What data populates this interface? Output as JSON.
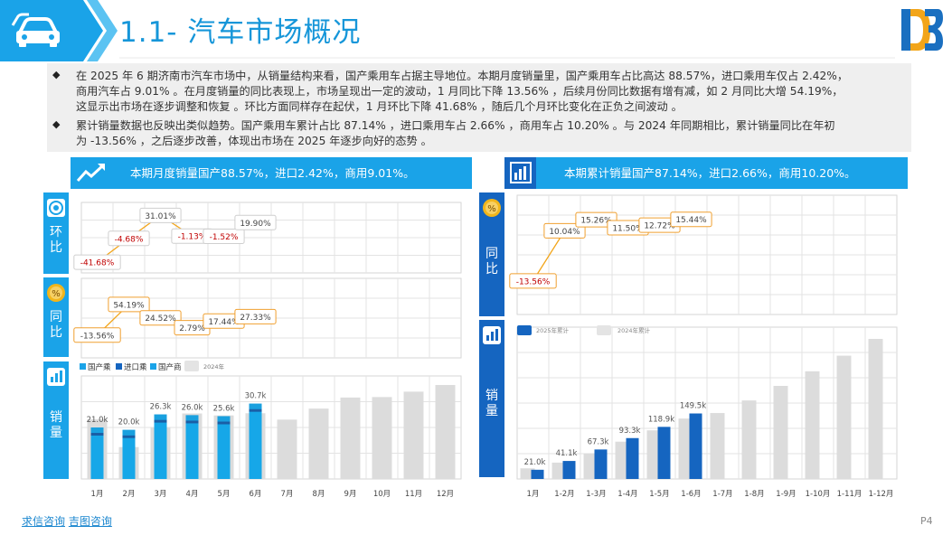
{
  "header": {
    "title": "1.1- 汽车市场概况",
    "car_icon": "car-icon",
    "logo_icon": "logo-icon"
  },
  "intro": {
    "p1_line1": "在 2025 年 6 期济南市汽车市场中，从销量结构来看，国产乘用车占据主导地位。本期月度销量里，国产乘用车占比高达 88.57%，进口乘用车仅占 2.42%，",
    "p1_line2": "商用汽车占 9.01% 。在月度销量的同比表现上，市场呈现出一定的波动，1 月同比下降 13.56% ，后续月份同比数据有增有减，如 2 月同比大增 54.19%，",
    "p1_line3": "这显示出市场在逐步调整和恢复 。环比方面同样存在起伏，1 月环比下降 41.68% ，随后几个月环比变化在正负之间波动 。",
    "p2_line1": "累计销量数据也反映出类似趋势。国产乘用车累计占比 87.14% ，进口乘用车占 2.66% ，商用车占 10.20% 。与 2024 年同期相比，累计销量同比在年初",
    "p2_line2": "为 -13.56% ，之后逐步改善，体现出市场在 2025 年逐步向好的态势 。",
    "bullet": "◆"
  },
  "left_panel": {
    "banner": "本期月度销量国产88.57%，进口2.42%，商用9.01%。",
    "side_mom": "环比",
    "side_yoy": "同比",
    "side_sales": "销量"
  },
  "right_panel": {
    "banner": "本期累计销量国产87.14%，进口2.66%，商用10.20%。",
    "side_yoy": "同比",
    "side_sales": "销量"
  },
  "footer": {
    "brand1": "求信咨询",
    "brand2": "吉图咨询",
    "page": "P4"
  },
  "colors": {
    "accent": "#1aa3e8",
    "dark_blue": "#1565c0",
    "bar_2025": "#16a7e8",
    "bar_2024": "#d9d9d9",
    "label_border": "#f0a030",
    "negative_text": "#c00000"
  },
  "chart_data": [
    {
      "id": "monthly_mom",
      "type": "line",
      "categories": [
        "1月",
        "2月",
        "3月",
        "4月",
        "5月",
        "6月"
      ],
      "values": [
        -41.68,
        -4.68,
        31.01,
        -1.13,
        -1.52,
        19.9
      ],
      "labels": [
        "-41.68%",
        "-4.68%",
        "31.01%",
        "-1.13%",
        "-1.52%",
        "19.90%"
      ],
      "ylim": [
        -50,
        40
      ]
    },
    {
      "id": "monthly_yoy",
      "type": "line",
      "categories": [
        "1月",
        "2月",
        "3月",
        "4月",
        "5月",
        "6月"
      ],
      "values": [
        -13.56,
        54.19,
        24.52,
        2.79,
        17.44,
        27.33
      ],
      "labels": [
        "-13.56%",
        "54.19%",
        "24.52%",
        "2.79%",
        "17.44%",
        "27.33%"
      ],
      "ylim": [
        -20,
        60
      ]
    },
    {
      "id": "monthly_sales",
      "type": "bar",
      "categories": [
        "1月",
        "2月",
        "3月",
        "4月",
        "5月",
        "6月",
        "7月",
        "8月",
        "9月",
        "10月",
        "11月",
        "12月"
      ],
      "legend": [
        "国产乘",
        "进口乘",
        "国产商",
        "2024年"
      ],
      "series": [
        {
          "name": "2025年",
          "values": [
            21.0,
            20.0,
            26.3,
            26.0,
            25.6,
            30.7,
            null,
            null,
            null,
            null,
            null,
            null
          ],
          "labels": [
            "21.0k",
            "20.0k",
            "26.3k",
            "26.0k",
            "25.6k",
            "30.7k",
            "",
            "",
            "",
            "",
            "",
            ""
          ]
        },
        {
          "name": "2024年",
          "values": [
            24.3,
            13.0,
            21.1,
            26.7,
            25.9,
            26.8,
            24.2,
            28.7,
            33.2,
            33.4,
            35.6,
            38.3
          ]
        }
      ],
      "ylim": [
        0,
        42
      ]
    },
    {
      "id": "cumulative_yoy",
      "type": "line",
      "categories": [
        "1月",
        "1-2月",
        "1-3月",
        "1-4月",
        "1-5月",
        "1-6月"
      ],
      "values": [
        -13.56,
        10.04,
        15.26,
        11.5,
        12.72,
        15.44
      ],
      "labels": [
        "-13.56%",
        "10.04%",
        "15.26%",
        "11.50%",
        "12.72%",
        "15.44%"
      ],
      "ylim": [
        -20,
        20
      ]
    },
    {
      "id": "cumulative_sales",
      "type": "bar",
      "categories": [
        "1月",
        "1-2月",
        "1-3月",
        "1-4月",
        "1-5月",
        "1-6月",
        "1-7月",
        "1-8月",
        "1-9月",
        "1-10月",
        "1-11月",
        "1-12月"
      ],
      "legend": [
        "2025年累计",
        "2024年累计"
      ],
      "series": [
        {
          "name": "2025年累计",
          "values": [
            21.0,
            41.1,
            67.3,
            93.3,
            118.9,
            149.5,
            null,
            null,
            null,
            null,
            null,
            null
          ],
          "labels": [
            "21.0k",
            "41.1k",
            "67.3k",
            "93.3k",
            "118.9k",
            "149.5k",
            "",
            "",
            "",
            "",
            "",
            ""
          ]
        },
        {
          "name": "2024年累计",
          "values": [
            24.3,
            37.3,
            58.4,
            85.1,
            111.0,
            137.8,
            150.5,
            179.2,
            212.4,
            245.8,
            281.4,
            319.7
          ]
        }
      ],
      "ylim": [
        0,
        330
      ]
    }
  ]
}
